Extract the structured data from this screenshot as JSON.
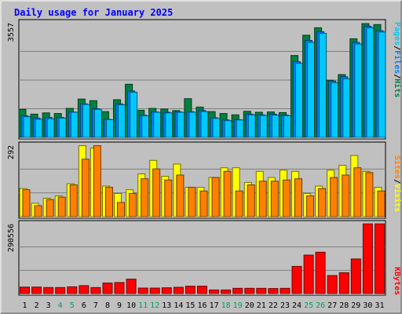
{
  "title": "Daily usage for January 2025",
  "colors": {
    "background": "#c0c0c0",
    "title": "#0000ff",
    "pages": "#00c8ff",
    "files": "#0080ff",
    "hits": "#008040",
    "sites": "#ff8000",
    "visits": "#ffff00",
    "kbytes": "#ff0000",
    "weekend_label": "#00a060",
    "weekday_label": "#000000"
  },
  "legend": {
    "top": [
      "Pages",
      "/",
      "Files",
      "/",
      "Hits"
    ],
    "middle": [
      "Sites",
      "/",
      "Visits"
    ],
    "bottom": [
      "KBytes"
    ]
  },
  "chart_data": [
    {
      "type": "bar",
      "panel": "hits-files-pages",
      "title": "Daily usage for January 2025",
      "categories": [
        "1",
        "2",
        "3",
        "4",
        "5",
        "6",
        "7",
        "8",
        "9",
        "10",
        "11",
        "12",
        "13",
        "14",
        "15",
        "16",
        "17",
        "18",
        "19",
        "20",
        "21",
        "22",
        "23",
        "24",
        "25",
        "26",
        "27",
        "28",
        "29",
        "30",
        "31"
      ],
      "y_max_label": "3557",
      "ylim": [
        0,
        3557
      ],
      "series": [
        {
          "name": "Hits",
          "values": [
            870,
            720,
            760,
            740,
            900,
            1190,
            1140,
            800,
            1170,
            1650,
            840,
            900,
            880,
            830,
            1200,
            940,
            800,
            740,
            700,
            810,
            780,
            790,
            770,
            2540,
            3170,
            3400,
            1770,
            1950,
            3060,
            3530,
            3500
          ]
        },
        {
          "name": "Files",
          "values": [
            670,
            600,
            620,
            620,
            790,
            1040,
            890,
            560,
            1040,
            1440,
            690,
            790,
            780,
            790,
            800,
            830,
            610,
            540,
            550,
            720,
            700,
            720,
            690,
            2350,
            3010,
            3280,
            1750,
            1880,
            2950,
            3450,
            3310
          ]
        },
        {
          "name": "Pages",
          "values": [
            640,
            560,
            580,
            600,
            780,
            1020,
            870,
            550,
            1010,
            1400,
            670,
            780,
            760,
            780,
            780,
            800,
            590,
            520,
            540,
            700,
            680,
            690,
            670,
            2300,
            2950,
            3230,
            1700,
            1820,
            2900,
            3400,
            3270
          ]
        }
      ]
    },
    {
      "type": "bar",
      "panel": "visits-sites",
      "categories": [
        "1",
        "2",
        "3",
        "4",
        "5",
        "6",
        "7",
        "8",
        "9",
        "10",
        "11",
        "12",
        "13",
        "14",
        "15",
        "16",
        "17",
        "18",
        "19",
        "20",
        "21",
        "22",
        "23",
        "24",
        "25",
        "26",
        "27",
        "28",
        "29",
        "30",
        "31"
      ],
      "y_max_label": "292",
      "ylim": [
        0,
        292
      ],
      "series": [
        {
          "name": "Visits",
          "values": [
            115,
            55,
            75,
            85,
            135,
            290,
            280,
            125,
            95,
            110,
            175,
            230,
            165,
            215,
            120,
            120,
            160,
            200,
            200,
            140,
            185,
            160,
            190,
            185,
            95,
            125,
            190,
            210,
            250,
            185,
            120
          ]
        },
        {
          "name": "Sites",
          "values": [
            110,
            45,
            70,
            80,
            130,
            235,
            290,
            120,
            58,
            95,
            155,
            195,
            150,
            170,
            120,
            105,
            160,
            185,
            105,
            130,
            145,
            145,
            150,
            155,
            85,
            115,
            160,
            170,
            200,
            180,
            105
          ]
        }
      ]
    },
    {
      "type": "bar",
      "panel": "kbytes",
      "categories": [
        "1",
        "2",
        "3",
        "4",
        "5",
        "6",
        "7",
        "8",
        "9",
        "10",
        "11",
        "12",
        "13",
        "14",
        "15",
        "16",
        "17",
        "18",
        "19",
        "20",
        "21",
        "22",
        "23",
        "24",
        "25",
        "26",
        "27",
        "28",
        "29",
        "30",
        "31"
      ],
      "y_max_label": "290556",
      "ylim": [
        0,
        290556
      ],
      "series": [
        {
          "name": "KBytes",
          "values": [
            27000,
            27000,
            25000,
            25000,
            28000,
            33000,
            25000,
            44000,
            46000,
            60000,
            23000,
            23000,
            24000,
            26000,
            31000,
            31000,
            15000,
            15000,
            22000,
            22000,
            22000,
            21000,
            22000,
            113000,
            160000,
            172000,
            75000,
            87000,
            144000,
            290000,
            290000
          ]
        }
      ]
    }
  ]
}
